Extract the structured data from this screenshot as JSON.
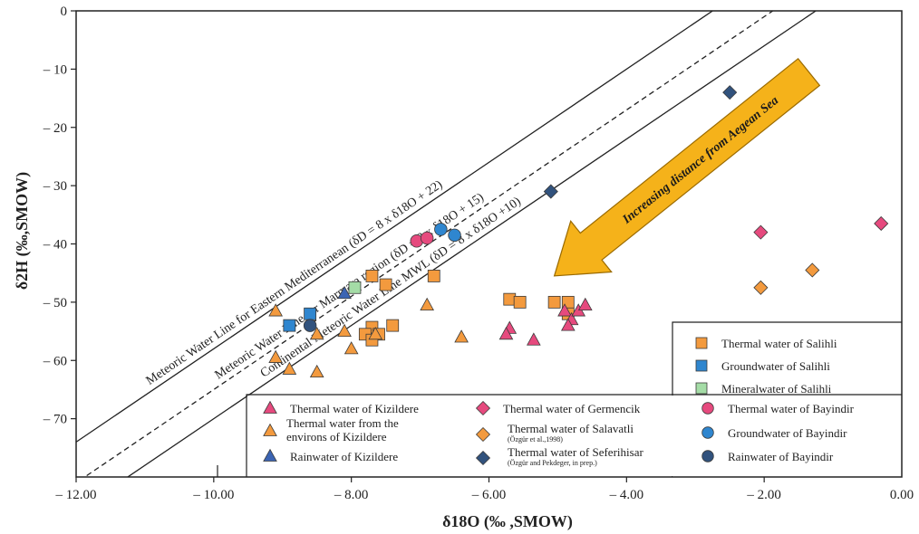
{
  "chart_data": {
    "type": "scatter",
    "xlabel": "δ18O (‰ ,SMOW)",
    "ylabel": "δ2H (‰,SMOW)",
    "xlim": [
      -12,
      0
    ],
    "ylim": [
      -80,
      0
    ],
    "x_ticks": [
      {
        "value": -12,
        "label": "– 12.00"
      },
      {
        "value": -10,
        "label": "– 10.00"
      },
      {
        "value": -8,
        "label": "– 8.00"
      },
      {
        "value": -6,
        "label": "– 6.00"
      },
      {
        "value": -4,
        "label": "– 4.00"
      },
      {
        "value": -2,
        "label": "– 2.00"
      },
      {
        "value": 0,
        "label": "0.00"
      }
    ],
    "y_ticks": [
      {
        "value": 0,
        "label": "0"
      },
      {
        "value": -10,
        "label": "– 10"
      },
      {
        "value": -20,
        "label": "– 20"
      },
      {
        "value": -30,
        "label": "– 30"
      },
      {
        "value": -40,
        "label": "– 40"
      },
      {
        "value": -50,
        "label": "– 50"
      },
      {
        "value": -60,
        "label": "– 60"
      },
      {
        "value": -70,
        "label": "– 70"
      }
    ],
    "lines": [
      {
        "intercept": 22,
        "style": "solid",
        "label": "Meteoric Water Line for Eastern Mediterranean (δD = 8 x δ18O + 22)"
      },
      {
        "intercept": 15,
        "style": "dashed",
        "label": "Meteoric Water Line for Marmara region (δD = 8 x δ18O + 15)"
      },
      {
        "intercept": 10,
        "style": "solid",
        "label": "Continental Meteoric Water Line MWL (δD = 8 x δ18O +10)"
      }
    ],
    "annotation": "Increasing distance from Aegean Sea",
    "series": [
      {
        "name": "Thermal water of Salihli",
        "marker": "square",
        "color": "#f39a3e",
        "points": [
          [
            -7.7,
            -45.5
          ],
          [
            -7.5,
            -47
          ],
          [
            -6.8,
            -45.5
          ],
          [
            -7.4,
            -54
          ],
          [
            -7.7,
            -54.3
          ],
          [
            -7.8,
            -55.5
          ],
          [
            -7.6,
            -55.5
          ],
          [
            -7.7,
            -56.5
          ],
          [
            -5.7,
            -49.5
          ],
          [
            -5.55,
            -50
          ],
          [
            -5.05,
            -50
          ],
          [
            -4.85,
            -50
          ],
          [
            -4.85,
            -52
          ]
        ]
      },
      {
        "name": "Groundwater of Salihli",
        "marker": "square",
        "color": "#2f86cf",
        "points": [
          [
            -8.9,
            -54
          ],
          [
            -8.6,
            -52
          ]
        ]
      },
      {
        "name": "Mineralwater of Salihli",
        "marker": "square",
        "color": "#a4dca6",
        "points": [
          [
            -7.95,
            -47.5
          ]
        ]
      },
      {
        "name": "Thermal water of Kizildere",
        "marker": "triangle",
        "color": "#e64a7e",
        "points": [
          [
            -4.9,
            -51.5
          ],
          [
            -4.8,
            -53
          ],
          [
            -4.7,
            -51.5
          ],
          [
            -4.6,
            -50.5
          ],
          [
            -5.7,
            -54.5
          ],
          [
            -5.75,
            -55.5
          ],
          [
            -5.35,
            -56.5
          ],
          [
            -4.85,
            -54
          ]
        ]
      },
      {
        "name": "Thermal water from the environs of Kizildere",
        "marker": "triangle",
        "color": "#f39a3e",
        "points": [
          [
            -9.1,
            -51.5
          ],
          [
            -9.1,
            -59.5
          ],
          [
            -8.9,
            -61.5
          ],
          [
            -8.5,
            -55.5
          ],
          [
            -8.5,
            -62
          ],
          [
            -8.1,
            -55
          ],
          [
            -8.0,
            -58
          ],
          [
            -7.65,
            -55.5
          ],
          [
            -6.9,
            -50.5
          ],
          [
            -6.4,
            -56
          ]
        ]
      },
      {
        "name": "Rainwater of Kizildere",
        "marker": "triangle",
        "color": "#3b64b3",
        "points": [
          [
            -8.1,
            -48.5
          ]
        ]
      },
      {
        "name": "Thermal water of Germencik",
        "marker": "diamond",
        "color": "#e64a7e",
        "points": [
          [
            -2.05,
            -38
          ],
          [
            -0.3,
            -36.5
          ]
        ]
      },
      {
        "name": "Thermal water of Salavatli",
        "marker": "diamond",
        "color": "#f39a3e",
        "points": [
          [
            -2.05,
            -47.5
          ],
          [
            -1.3,
            -44.5
          ]
        ]
      },
      {
        "name": "Thermal water of Seferihisar",
        "marker": "diamond",
        "color": "#31527d",
        "points": [
          [
            -2.5,
            -14
          ],
          [
            -5.1,
            -31
          ]
        ]
      },
      {
        "name": "Thermal water of Bayindir",
        "marker": "circle",
        "color": "#e64a7e",
        "points": [
          [
            -7.05,
            -39.5
          ],
          [
            -6.9,
            -39
          ]
        ]
      },
      {
        "name": "Groundwater of Bayindir",
        "marker": "circle",
        "color": "#2f86cf",
        "points": [
          [
            -6.7,
            -37.5
          ],
          [
            -6.5,
            -38.5
          ]
        ]
      },
      {
        "name": "Rainwater of Bayindir",
        "marker": "circle",
        "color": "#31527d",
        "points": [
          [
            -8.6,
            -54
          ]
        ]
      }
    ],
    "legend_box_right": [
      {
        "name": "Thermal water of Salihli",
        "marker": "square",
        "color": "#f39a3e"
      },
      {
        "name": "Groundwater of Salihli",
        "marker": "square",
        "color": "#2f86cf"
      },
      {
        "name": "Mineralwater of Salihli",
        "marker": "square",
        "color": "#a4dca6"
      }
    ],
    "legend_box_bottom": [
      {
        "name": "Thermal water of Kizildere",
        "marker": "triangle",
        "color": "#e64a7e",
        "col": 0,
        "row": 0
      },
      {
        "name": "Thermal water from the",
        "name2": "environs of Kizildere",
        "marker": "triangle",
        "color": "#f39a3e",
        "col": 0,
        "row": 1
      },
      {
        "name": "Rainwater of Kizildere",
        "marker": "triangle",
        "color": "#3b64b3",
        "col": 0,
        "row": 2
      },
      {
        "name": "Thermal water of Germencik",
        "marker": "diamond",
        "color": "#e64a7e",
        "col": 1,
        "row": 0
      },
      {
        "name": "Thermal water of Salavatli",
        "sub": "(Özgür et al.,1998)",
        "marker": "diamond",
        "color": "#f39a3e",
        "col": 1,
        "row": 1
      },
      {
        "name": "Thermal water of Seferihisar",
        "sub": "(Özgür and Pekdeger, in prep.)",
        "marker": "diamond",
        "color": "#31527d",
        "col": 1,
        "row": 2
      },
      {
        "name": "Thermal water of Bayindir",
        "marker": "circle",
        "color": "#e64a7e",
        "col": 2,
        "row": 0
      },
      {
        "name": "Groundwater of Bayindir",
        "marker": "circle",
        "color": "#2f86cf",
        "col": 2,
        "row": 1
      },
      {
        "name": "Rainwater of Bayindir",
        "marker": "circle",
        "color": "#31527d",
        "col": 2,
        "row": 2
      }
    ],
    "grid": false,
    "arrow_color": "#f5b21a"
  }
}
